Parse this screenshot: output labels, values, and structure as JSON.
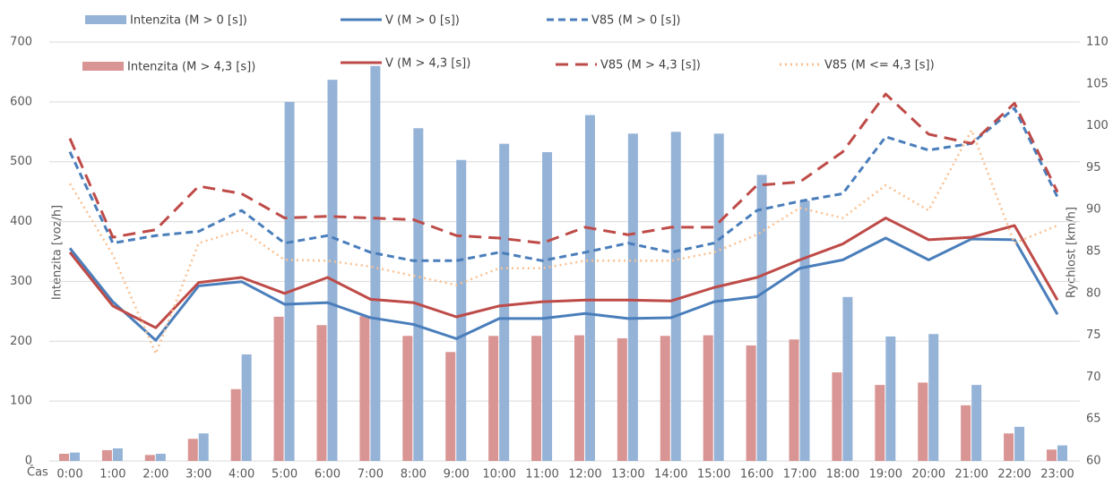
{
  "chart_data": {
    "type": "combo",
    "x_label": "Čas",
    "y_label": "Intenzita [voz/h]",
    "y2_label": "Rychlost [km/h]",
    "categories": [
      "0:00",
      "1:00",
      "2:00",
      "3:00",
      "4:00",
      "5:00",
      "6:00",
      "7:00",
      "8:00",
      "9:00",
      "10:00",
      "11:00",
      "12:00",
      "13:00",
      "14:00",
      "15:00",
      "16:00",
      "17:00",
      "18:00",
      "19:00",
      "20:00",
      "21:00",
      "22:00",
      "23:00"
    ],
    "ylim": [
      0,
      700
    ],
    "yticks": [
      0,
      100,
      200,
      300,
      400,
      500,
      600,
      700
    ],
    "y2lim": [
      60,
      110
    ],
    "y2ticks": [
      60,
      65,
      70,
      75,
      80,
      85,
      90,
      95,
      100,
      105,
      110
    ],
    "grid": true,
    "series": [
      {
        "name": "Intenzita (M > 0 [s])",
        "type": "bar",
        "color": "#95b3d7",
        "values": [
          14,
          21,
          12,
          46,
          178,
          600,
          637,
          660,
          556,
          503,
          530,
          516,
          578,
          547,
          550,
          547,
          478,
          435,
          274,
          208,
          212,
          127,
          57,
          26
        ]
      },
      {
        "name": "V (M > 0 [s])",
        "type": "line",
        "axis": "y2",
        "color": "#4a7ebb",
        "line_style": "solid",
        "values": [
          85.4,
          79.0,
          74.4,
          80.9,
          81.4,
          78.7,
          78.9,
          77.1,
          76.3,
          74.6,
          77.0,
          77.0,
          77.6,
          77.0,
          77.1,
          79.0,
          79.6,
          83.0,
          84.0,
          86.6,
          84.0,
          86.5,
          86.4,
          77.5
        ]
      },
      {
        "name": "V85 (M > 0 [s])",
        "type": "line",
        "axis": "y2",
        "color": "#4a7ebb",
        "line_style": "dash",
        "values": [
          96.9,
          86.0,
          86.9,
          87.4,
          89.9,
          86.0,
          86.9,
          84.9,
          83.9,
          83.9,
          84.9,
          83.9,
          84.9,
          86.0,
          84.9,
          86.0,
          89.9,
          91.0,
          91.9,
          98.7,
          97.1,
          97.9,
          102.1,
          91.5
        ]
      },
      {
        "name": "Intenzita (M > 4,3 [s])",
        "type": "bar",
        "color": "#d99594",
        "values": [
          12,
          18,
          10,
          37,
          120,
          241,
          227,
          242,
          209,
          182,
          209,
          209,
          210,
          205,
          209,
          210,
          193,
          203,
          148,
          127,
          131,
          93,
          46,
          19
        ]
      },
      {
        "name": "V (M > 4,3 [s])",
        "type": "line",
        "axis": "y2",
        "color": "#be4b48",
        "line_style": "solid",
        "values": [
          84.9,
          78.5,
          75.9,
          81.3,
          81.9,
          80.0,
          81.9,
          79.3,
          78.9,
          77.2,
          78.5,
          79.0,
          79.2,
          79.2,
          79.1,
          80.7,
          81.9,
          84.0,
          85.9,
          89.0,
          86.4,
          86.7,
          88.1,
          79.2
        ]
      },
      {
        "name": "V85 (M > 4,3 [s])",
        "type": "line",
        "axis": "y2",
        "color": "#be4b48",
        "line_style": "longdash",
        "values": [
          98.5,
          86.7,
          87.6,
          92.8,
          91.9,
          89.0,
          89.2,
          89.0,
          88.8,
          86.9,
          86.6,
          86.0,
          87.9,
          87.0,
          87.9,
          87.9,
          92.9,
          93.3,
          96.9,
          103.8,
          99.0,
          97.9,
          102.7,
          92.1
        ]
      },
      {
        "name": "V85 (M <= 4,3 [s])",
        "type": "line",
        "axis": "y2",
        "color": "#fac090",
        "line_style": "dot",
        "values": [
          93.1,
          84.6,
          72.8,
          86.0,
          87.6,
          84.0,
          83.9,
          83.2,
          82.1,
          81.0,
          83.0,
          83.0,
          83.9,
          83.9,
          83.9,
          84.9,
          87.0,
          90.2,
          89.0,
          92.9,
          89.9,
          99.5,
          86.0,
          88.1
        ]
      }
    ]
  }
}
